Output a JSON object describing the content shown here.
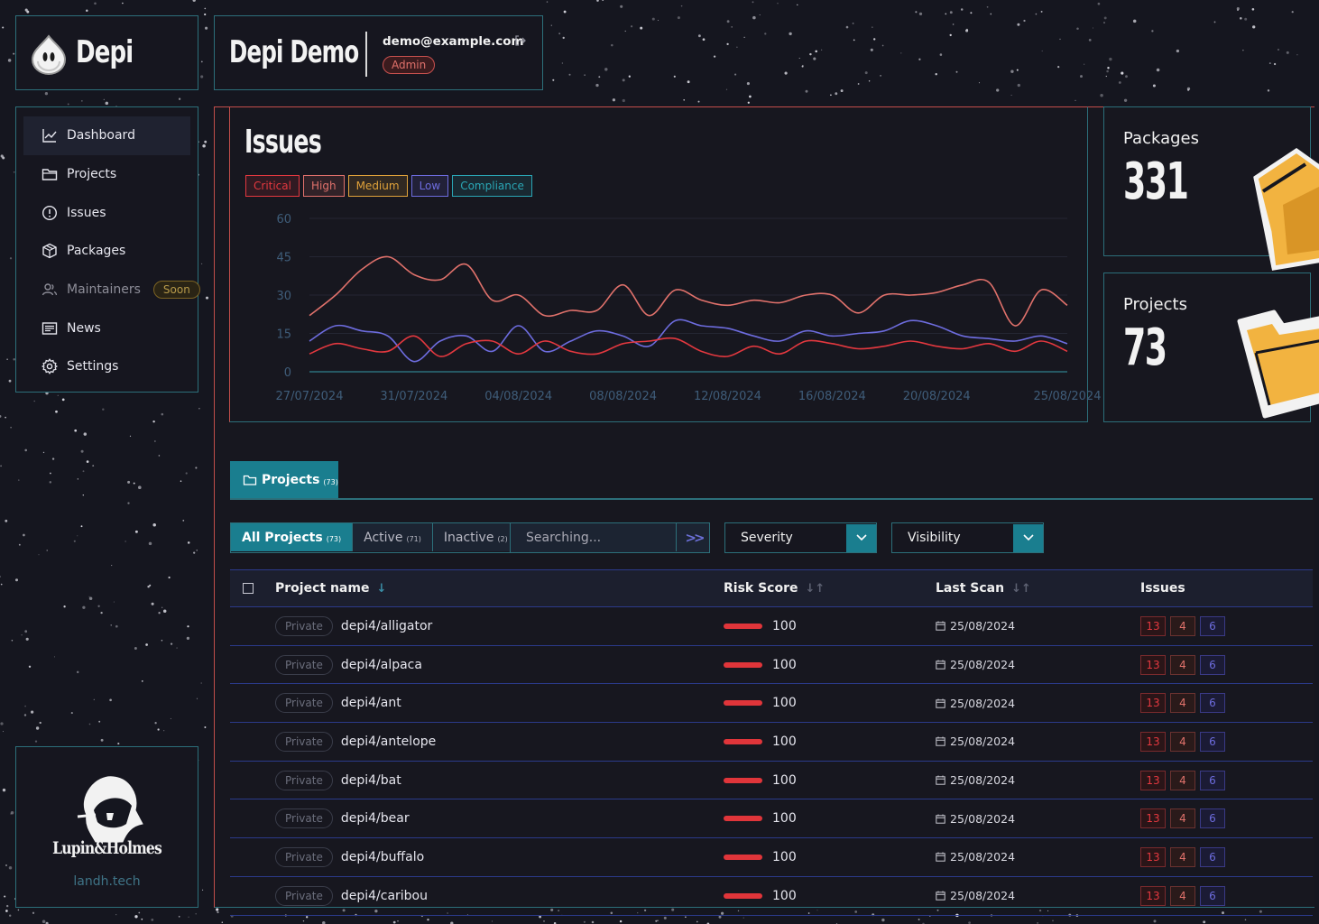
{
  "brand": {
    "name": "Depi",
    "icon": "depi-logo-icon"
  },
  "header": {
    "title": "Depi Demo",
    "email": "demo@example.com",
    "role": "Admin",
    "logout_icon": "logout-icon"
  },
  "nav": {
    "items": [
      {
        "label": "Dashboard",
        "icon": "chart-line-icon",
        "active": true
      },
      {
        "label": "Projects",
        "icon": "folder-icon"
      },
      {
        "label": "Issues",
        "icon": "alert-circle-icon"
      },
      {
        "label": "Packages",
        "icon": "package-icon"
      },
      {
        "label": "Maintainers",
        "icon": "users-icon",
        "badge": "Soon"
      },
      {
        "label": "News",
        "icon": "newspaper-icon"
      },
      {
        "label": "Settings",
        "icon": "gear-icon"
      }
    ]
  },
  "sponsor": {
    "name": "Lupin&Holmes",
    "url": "landh.tech"
  },
  "issues_panel": {
    "title": "Issues",
    "legend": [
      {
        "label": "Critical",
        "color": "#e3383f"
      },
      {
        "label": "High",
        "color": "#e0716b"
      },
      {
        "label": "Medium",
        "color": "#e0a23a"
      },
      {
        "label": "Low",
        "color": "#6d6cde"
      },
      {
        "label": "Compliance",
        "color": "#2aa6b5"
      }
    ]
  },
  "chart_data": {
    "type": "line",
    "title": "Issues",
    "x": [
      "27/07/2024",
      "28/07/2024",
      "29/07/2024",
      "30/07/2024",
      "31/07/2024",
      "01/08/2024",
      "02/08/2024",
      "03/08/2024",
      "04/08/2024",
      "05/08/2024",
      "06/08/2024",
      "07/08/2024",
      "08/08/2024",
      "09/08/2024",
      "10/08/2024",
      "11/08/2024",
      "12/08/2024",
      "13/08/2024",
      "14/08/2024",
      "15/08/2024",
      "16/08/2024",
      "17/08/2024",
      "18/08/2024",
      "19/08/2024",
      "20/08/2024",
      "21/08/2024",
      "22/08/2024",
      "23/08/2024",
      "24/08/2024",
      "25/08/2024"
    ],
    "x_ticks": [
      "27/07/2024",
      "31/07/2024",
      "04/08/2024",
      "08/08/2024",
      "12/08/2024",
      "16/08/2024",
      "20/08/2024",
      "25/08/2024"
    ],
    "y_ticks": [
      0,
      15,
      30,
      45,
      60
    ],
    "ylim": [
      0,
      60
    ],
    "series": [
      {
        "name": "High",
        "color": "#e0716b",
        "values": [
          22,
          30,
          40,
          45,
          38,
          36,
          42,
          28,
          30,
          22,
          24,
          24,
          34,
          22,
          32,
          28,
          26,
          28,
          27,
          30,
          30,
          23,
          30,
          30,
          31,
          34,
          35,
          18,
          32,
          26
        ]
      },
      {
        "name": "Low",
        "color": "#6d6cde",
        "values": [
          12,
          18,
          16,
          14,
          4,
          12,
          14,
          8,
          18,
          8,
          12,
          16,
          14,
          10,
          20,
          18,
          17,
          14,
          12,
          16,
          14,
          15,
          16,
          20,
          18,
          14,
          13,
          12,
          14,
          11
        ]
      },
      {
        "name": "Critical",
        "color": "#e3383f",
        "values": [
          7,
          11,
          9,
          8,
          14,
          6,
          11,
          12,
          7,
          12,
          8,
          7,
          11,
          12,
          13,
          8,
          6,
          10,
          7,
          12,
          11,
          9,
          10,
          12,
          10,
          9,
          11,
          8,
          12,
          8
        ]
      }
    ]
  },
  "stats": {
    "packages": {
      "label": "Packages",
      "value": "331"
    },
    "projects": {
      "label": "Projects",
      "value": "73"
    }
  },
  "projects_tab": {
    "label": "Projects",
    "count": "(73)"
  },
  "filters": {
    "tabs": [
      {
        "label": "All Projects",
        "count": "(73)",
        "active": true
      },
      {
        "label": "Active",
        "count": "(71)"
      },
      {
        "label": "Inactive",
        "count": "(2)"
      }
    ],
    "search_placeholder": "Searching...",
    "search_go": ">>",
    "severity_label": "Severity",
    "visibility_label": "Visibility"
  },
  "table": {
    "headers": {
      "name": "Project name",
      "risk": "Risk Score",
      "scan": "Last Scan",
      "issues": "Issues"
    },
    "rows": [
      {
        "visibility": "Private",
        "name": "depi4/alligator",
        "risk": "100",
        "scan": "25/08/2024",
        "crit": "13",
        "high": "4",
        "low": "6"
      },
      {
        "visibility": "Private",
        "name": "depi4/alpaca",
        "risk": "100",
        "scan": "25/08/2024",
        "crit": "13",
        "high": "4",
        "low": "6"
      },
      {
        "visibility": "Private",
        "name": "depi4/ant",
        "risk": "100",
        "scan": "25/08/2024",
        "crit": "13",
        "high": "4",
        "low": "6"
      },
      {
        "visibility": "Private",
        "name": "depi4/antelope",
        "risk": "100",
        "scan": "25/08/2024",
        "crit": "13",
        "high": "4",
        "low": "6"
      },
      {
        "visibility": "Private",
        "name": "depi4/bat",
        "risk": "100",
        "scan": "25/08/2024",
        "crit": "13",
        "high": "4",
        "low": "6"
      },
      {
        "visibility": "Private",
        "name": "depi4/bear",
        "risk": "100",
        "scan": "25/08/2024",
        "crit": "13",
        "high": "4",
        "low": "6"
      },
      {
        "visibility": "Private",
        "name": "depi4/buffalo",
        "risk": "100",
        "scan": "25/08/2024",
        "crit": "13",
        "high": "4",
        "low": "6"
      },
      {
        "visibility": "Private",
        "name": "depi4/caribou",
        "risk": "100",
        "scan": "25/08/2024",
        "crit": "13",
        "high": "4",
        "low": "6"
      }
    ]
  }
}
